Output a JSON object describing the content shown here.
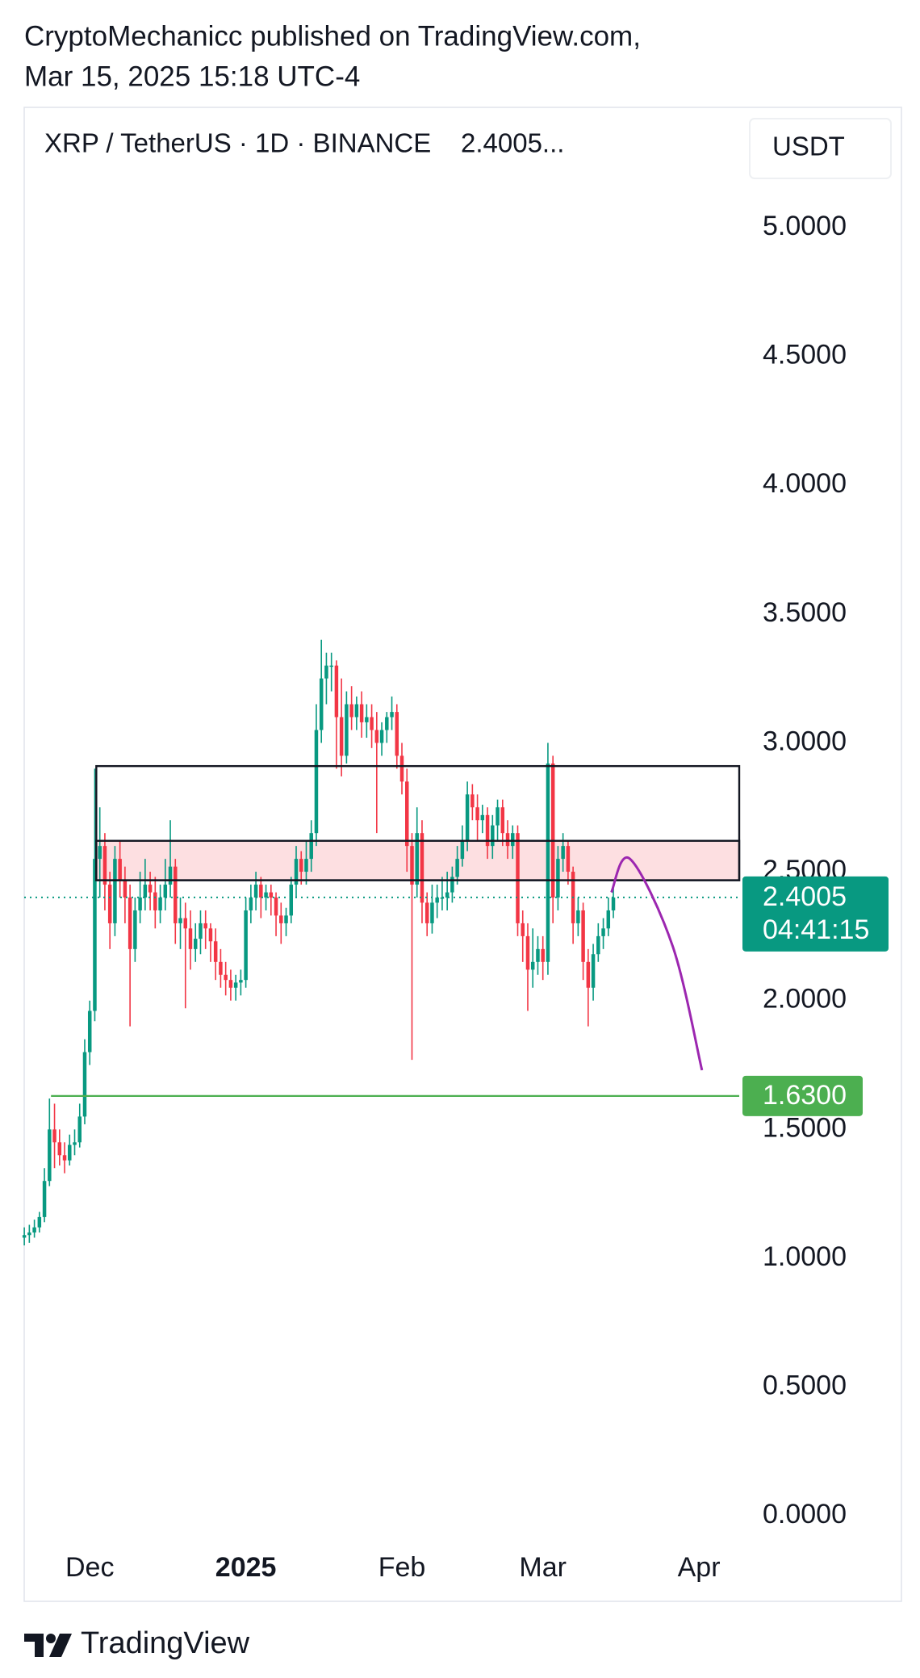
{
  "header": {
    "author_line": "CryptoMechanicc published on TradingView.com,",
    "date_line": "Mar 15, 2025 15:18 UTC-4"
  },
  "footer": {
    "brand": "TradingView"
  },
  "chart_data": {
    "type": "candlestick",
    "symbol": "XRP / TetherUS · 1D · BINANCE",
    "legend_price": "2.4005...",
    "currency": "USDT",
    "up_color": "#089981",
    "down_color": "#f23645",
    "open": [
      1.08,
      1.09,
      1.1,
      1.12,
      1.16,
      1.3,
      1.5,
      1.45,
      1.4,
      1.38,
      1.44,
      1.45,
      1.55,
      1.8,
      1.96,
      2.55,
      2.6,
      2.45,
      2.3,
      2.55,
      2.47,
      2.4,
      2.2,
      2.35,
      2.4,
      2.45,
      2.42,
      2.35,
      2.4,
      2.45,
      2.52,
      2.3,
      2.32,
      2.28,
      2.2,
      2.24,
      2.3,
      2.28,
      2.23,
      2.15,
      2.1,
      2.08,
      2.05,
      2.07,
      2.08,
      2.35,
      2.4,
      2.45,
      2.4,
      2.42,
      2.4,
      2.33,
      2.3,
      2.33,
      2.45,
      2.55,
      2.5,
      2.55,
      2.65,
      3.05,
      3.25,
      3.3,
      3.3,
      3.1,
      2.95,
      3.15,
      3.1,
      3.15,
      3.08,
      3.1,
      3.05,
      3.0,
      3.05,
      3.1,
      3.12,
      2.95,
      2.85,
      2.6,
      2.45,
      2.65,
      2.38,
      2.3,
      2.38,
      2.4,
      2.4,
      2.42,
      2.48,
      2.55,
      2.62,
      2.8,
      2.75,
      2.7,
      2.72,
      2.6,
      2.68,
      2.75,
      2.65,
      2.6,
      2.65,
      2.3,
      2.25,
      2.12,
      2.15,
      2.2,
      2.15,
      2.92,
      2.4,
      2.55,
      2.6,
      2.5,
      2.3,
      2.35,
      2.15,
      2.05,
      2.18,
      2.25,
      2.28,
      2.35
    ],
    "high": [
      1.12,
      1.13,
      1.15,
      1.18,
      1.35,
      1.62,
      1.6,
      1.5,
      1.45,
      1.48,
      1.5,
      1.6,
      1.85,
      2.0,
      2.9,
      2.75,
      2.65,
      2.5,
      2.6,
      2.62,
      2.52,
      2.45,
      2.4,
      2.5,
      2.55,
      2.5,
      2.48,
      2.45,
      2.55,
      2.7,
      2.55,
      2.4,
      2.38,
      2.35,
      2.3,
      2.35,
      2.35,
      2.3,
      2.28,
      2.2,
      2.15,
      2.12,
      2.1,
      2.12,
      2.4,
      2.45,
      2.5,
      2.48,
      2.45,
      2.45,
      2.42,
      2.38,
      2.36,
      2.48,
      2.6,
      2.58,
      2.62,
      2.7,
      3.15,
      3.4,
      3.35,
      3.35,
      3.32,
      3.25,
      3.2,
      3.22,
      3.18,
      3.2,
      3.15,
      3.15,
      3.12,
      3.08,
      3.12,
      3.18,
      3.15,
      3.0,
      2.9,
      2.65,
      2.75,
      2.7,
      2.42,
      2.45,
      2.45,
      2.48,
      2.5,
      2.52,
      2.6,
      2.68,
      2.85,
      2.84,
      2.8,
      2.76,
      2.75,
      2.72,
      2.78,
      2.78,
      2.7,
      2.68,
      2.68,
      2.35,
      2.3,
      2.28,
      2.25,
      2.25,
      3.0,
      2.95,
      2.6,
      2.65,
      2.62,
      2.52,
      2.4,
      2.38,
      2.2,
      2.22,
      2.3,
      2.32,
      2.4,
      2.45
    ],
    "low": [
      1.05,
      1.06,
      1.08,
      1.1,
      1.14,
      1.28,
      1.35,
      1.36,
      1.33,
      1.36,
      1.4,
      1.43,
      1.52,
      1.75,
      1.92,
      2.4,
      2.35,
      2.2,
      2.25,
      2.4,
      2.3,
      1.9,
      2.15,
      2.3,
      2.35,
      2.35,
      2.28,
      2.3,
      2.35,
      2.4,
      2.22,
      2.2,
      1.97,
      2.12,
      2.15,
      2.18,
      2.2,
      2.15,
      2.08,
      2.05,
      2.02,
      2.0,
      2.0,
      2.02,
      2.05,
      2.3,
      2.35,
      2.32,
      2.35,
      2.33,
      2.25,
      2.22,
      2.25,
      2.3,
      2.4,
      2.45,
      2.45,
      2.5,
      2.6,
      3.0,
      3.15,
      3.2,
      2.9,
      2.87,
      2.92,
      3.05,
      3.05,
      3.02,
      3.02,
      2.98,
      2.65,
      2.95,
      3.0,
      3.05,
      2.9,
      2.8,
      2.5,
      1.77,
      2.4,
      2.3,
      2.25,
      2.26,
      2.32,
      2.35,
      2.35,
      2.38,
      2.45,
      2.52,
      2.58,
      2.7,
      2.62,
      2.65,
      2.55,
      2.55,
      2.62,
      2.6,
      2.55,
      2.55,
      2.25,
      2.15,
      1.96,
      2.05,
      2.1,
      2.08,
      2.1,
      2.3,
      2.35,
      2.5,
      2.45,
      2.22,
      2.25,
      2.08,
      1.9,
      2.0,
      2.15,
      2.2,
      2.25,
      2.32
    ],
    "close": [
      1.09,
      1.1,
      1.12,
      1.16,
      1.3,
      1.5,
      1.45,
      1.4,
      1.38,
      1.44,
      1.45,
      1.55,
      1.8,
      1.96,
      2.55,
      2.6,
      2.45,
      2.3,
      2.55,
      2.47,
      2.4,
      2.2,
      2.35,
      2.4,
      2.45,
      2.42,
      2.35,
      2.4,
      2.45,
      2.52,
      2.3,
      2.32,
      2.28,
      2.2,
      2.24,
      2.3,
      2.28,
      2.23,
      2.15,
      2.1,
      2.08,
      2.05,
      2.07,
      2.08,
      2.35,
      2.4,
      2.45,
      2.4,
      2.42,
      2.4,
      2.33,
      2.3,
      2.33,
      2.45,
      2.55,
      2.5,
      2.55,
      2.65,
      3.05,
      3.25,
      3.3,
      3.3,
      3.1,
      2.95,
      3.15,
      3.1,
      3.15,
      3.08,
      3.1,
      3.05,
      3.0,
      3.05,
      3.1,
      3.12,
      2.95,
      2.85,
      2.6,
      2.45,
      2.65,
      2.38,
      2.3,
      2.38,
      2.4,
      2.4,
      2.42,
      2.48,
      2.55,
      2.62,
      2.8,
      2.75,
      2.7,
      2.72,
      2.6,
      2.68,
      2.75,
      2.65,
      2.6,
      2.65,
      2.3,
      2.25,
      2.12,
      2.15,
      2.2,
      2.15,
      2.92,
      2.4,
      2.55,
      2.6,
      2.5,
      2.3,
      2.35,
      2.15,
      2.05,
      2.18,
      2.25,
      2.28,
      2.35,
      2.4
    ],
    "xlim": [
      -0.5,
      142
    ],
    "xticks": [
      {
        "value": 13,
        "label": "Dec"
      },
      {
        "value": 44,
        "label": "2025",
        "bold": true
      },
      {
        "value": 75,
        "label": "Feb"
      },
      {
        "value": 103,
        "label": "Mar"
      },
      {
        "value": 134,
        "label": "Apr"
      }
    ],
    "ylim": [
      -0.09,
      5.46
    ],
    "yticks": [
      {
        "value": 0,
        "label": "0.0000"
      },
      {
        "value": 0.5,
        "label": "0.5000"
      },
      {
        "value": 1,
        "label": "1.0000"
      },
      {
        "value": 1.5,
        "label": "1.5000"
      },
      {
        "value": 2,
        "label": "2.0000"
      },
      {
        "value": 2.5,
        "label": "2.5000"
      },
      {
        "value": 3,
        "label": "3.0000"
      },
      {
        "value": 3.5,
        "label": "3.5000"
      },
      {
        "value": 4,
        "label": "4.0000"
      },
      {
        "value": 4.5,
        "label": "4.5000"
      },
      {
        "value": 5,
        "label": "5.0000"
      }
    ],
    "grid": false,
    "last_price": 2.4005,
    "countdown": "04:41:15",
    "last_price_color": "#089981",
    "zones": [
      {
        "top": 2.91,
        "bottom": 2.467,
        "start": 14.3,
        "fill": "none"
      },
      {
        "top": 2.62,
        "bottom": 2.467,
        "start": 14.3,
        "fill": "#f23645"
      }
    ],
    "level": {
      "value": 1.63,
      "label": "1.6300",
      "start": 5.3,
      "color": "#4caf50"
    },
    "projection": {
      "x": [
        116.6,
        120.3,
        128.8,
        134.6
      ],
      "y": [
        2.42,
        2.55,
        2.21,
        1.73
      ],
      "color": "#9c27b0"
    }
  }
}
